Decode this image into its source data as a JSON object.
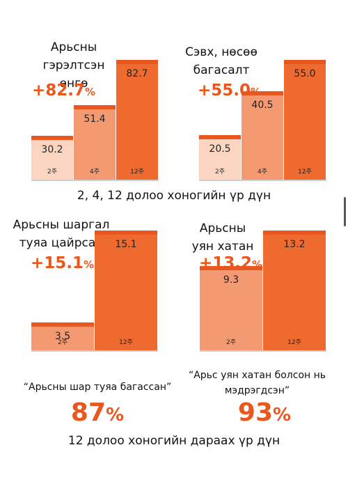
{
  "colors": {
    "accent": "#e9571f",
    "bar_light": "#fbd5c2",
    "bar_mid": "#f39a72",
    "bar_dark": "#ef6a2e"
  },
  "chart_data": [
    {
      "type": "bar",
      "title": "Арьсны гэрэлтсэн өнгө",
      "highlight": "+82.7",
      "highlight_unit": "%",
      "categories": [
        "2주",
        "4주",
        "12주"
      ],
      "values": [
        30.2,
        51.4,
        82.7
      ],
      "labels": [
        "30.2",
        "51.4",
        "82.7"
      ],
      "ylim": [
        0,
        100
      ]
    },
    {
      "type": "bar",
      "title": "Сэвх, нөсөө багасалт",
      "highlight": "+55.0",
      "highlight_unit": "%",
      "categories": [
        "2주",
        "4주",
        "12주"
      ],
      "values": [
        20.5,
        40.5,
        55.0
      ],
      "labels": [
        "20.5",
        "40.5",
        "55.0"
      ],
      "ylim": [
        0,
        65
      ]
    },
    {
      "type": "bar",
      "title": "Арьсны шаргал туяа цайрсан",
      "highlight": "+15.1",
      "highlight_unit": "%",
      "categories": [
        "2주",
        "12주"
      ],
      "values": [
        3.5,
        15.1
      ],
      "labels": [
        "3.5",
        "15.1"
      ],
      "ylim": [
        0,
        16
      ]
    },
    {
      "type": "bar",
      "title": "Арьсны уян хатан",
      "highlight": "+13.2",
      "highlight_unit": "%",
      "categories": [
        "2주",
        "12주"
      ],
      "values": [
        9.3,
        13.2
      ],
      "labels": [
        "9.3",
        "13.2"
      ],
      "ylim": [
        0,
        14
      ]
    }
  ],
  "captions": {
    "weeks_result": "2, 4, 12 долоо хоногийн үр дүн",
    "after_12": "12 долоо хоногийн дараах үр дүн"
  },
  "survey": [
    {
      "quote": "“Арьсны шар туяа багассан”",
      "value": "87",
      "unit": "%"
    },
    {
      "quote": "“Арьс уян хатан болсон нь мэдрэгдсэн”",
      "value": "93",
      "unit": "%"
    }
  ]
}
